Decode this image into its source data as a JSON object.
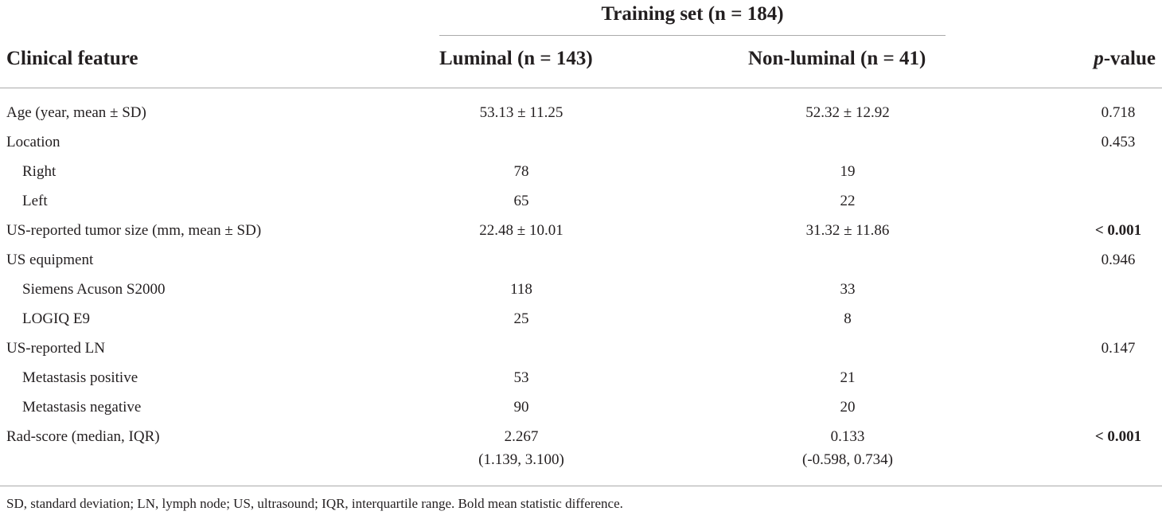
{
  "table": {
    "group_header": "Training set (n = 184)",
    "columns": {
      "feature": "Clinical feature",
      "luminal": "Luminal (n = 143)",
      "non_luminal": "Non-luminal (n = 41)",
      "p_italic": "p",
      "p_rest": "-value"
    },
    "rows": [
      {
        "label": "Age (year, mean ± SD)",
        "luminal": "53.13 ± 11.25",
        "non_luminal": "52.32 ± 12.92",
        "p": "0.718"
      },
      {
        "label": "Location",
        "luminal": "",
        "non_luminal": "",
        "p": "0.453"
      },
      {
        "label": "Right",
        "luminal": "78",
        "non_luminal": "19",
        "p": ""
      },
      {
        "label": "Left",
        "luminal": "65",
        "non_luminal": "22",
        "p": ""
      },
      {
        "label": "US-reported tumor size (mm, mean ± SD)",
        "luminal": "22.48 ± 10.01",
        "non_luminal": "31.32 ± 11.86",
        "p": "< 0.001"
      },
      {
        "label": "US equipment",
        "luminal": "",
        "non_luminal": "",
        "p": "0.946"
      },
      {
        "label": "Siemens Acuson S2000",
        "luminal": "118",
        "non_luminal": "33",
        "p": ""
      },
      {
        "label": "LOGIQ E9",
        "luminal": "25",
        "non_luminal": "8",
        "p": ""
      },
      {
        "label": "US-reported LN",
        "luminal": "",
        "non_luminal": "",
        "p": "0.147"
      },
      {
        "label": "Metastasis positive",
        "luminal": "53",
        "non_luminal": "21",
        "p": ""
      },
      {
        "label": "Metastasis negative",
        "luminal": "90",
        "non_luminal": "20",
        "p": ""
      },
      {
        "label": "Rad-score (median, IQR)",
        "luminal": "2.267",
        "luminal_2": "(1.139, 3.100)",
        "non_luminal": "0.133",
        "non_luminal_2": "(-0.598, 0.734)",
        "p": "< 0.001"
      }
    ]
  },
  "footnote": "SD, standard deviation; LN, lymph node; US, ultrasound; IQR, interquartile range. Bold mean statistic difference."
}
